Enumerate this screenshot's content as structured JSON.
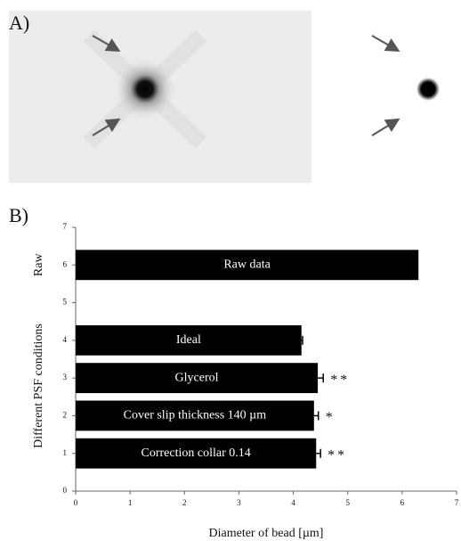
{
  "panel_labels": [
    "A)",
    "B)"
  ],
  "chart_data": {
    "type": "hbar",
    "y": [
      6,
      4,
      3,
      2,
      1
    ],
    "values": [
      6.3,
      4.15,
      4.45,
      4.38,
      4.42
    ],
    "errors": [
      null,
      0.02,
      0.1,
      0.08,
      0.08
    ],
    "bar_labels": [
      "Raw data",
      "Ideal",
      "Glycerol",
      "Cover slip thickness 140 µm",
      "Correction collar 0.14"
    ],
    "significance": [
      null,
      null,
      "**",
      "*",
      "**"
    ],
    "color": "#000000",
    "annotations": [
      {
        "text": "Raw",
        "y": 6
      }
    ],
    "xlabel": "Diameter of bead [µm]",
    "ylabel": "Different PSF conditions",
    "xlim": [
      0,
      7
    ],
    "xticks": [
      0,
      1,
      2,
      3,
      4,
      5,
      6,
      7
    ],
    "ylim": [
      0,
      7
    ],
    "yticks": [
      0,
      1,
      2,
      3,
      4,
      5,
      6,
      7
    ]
  }
}
